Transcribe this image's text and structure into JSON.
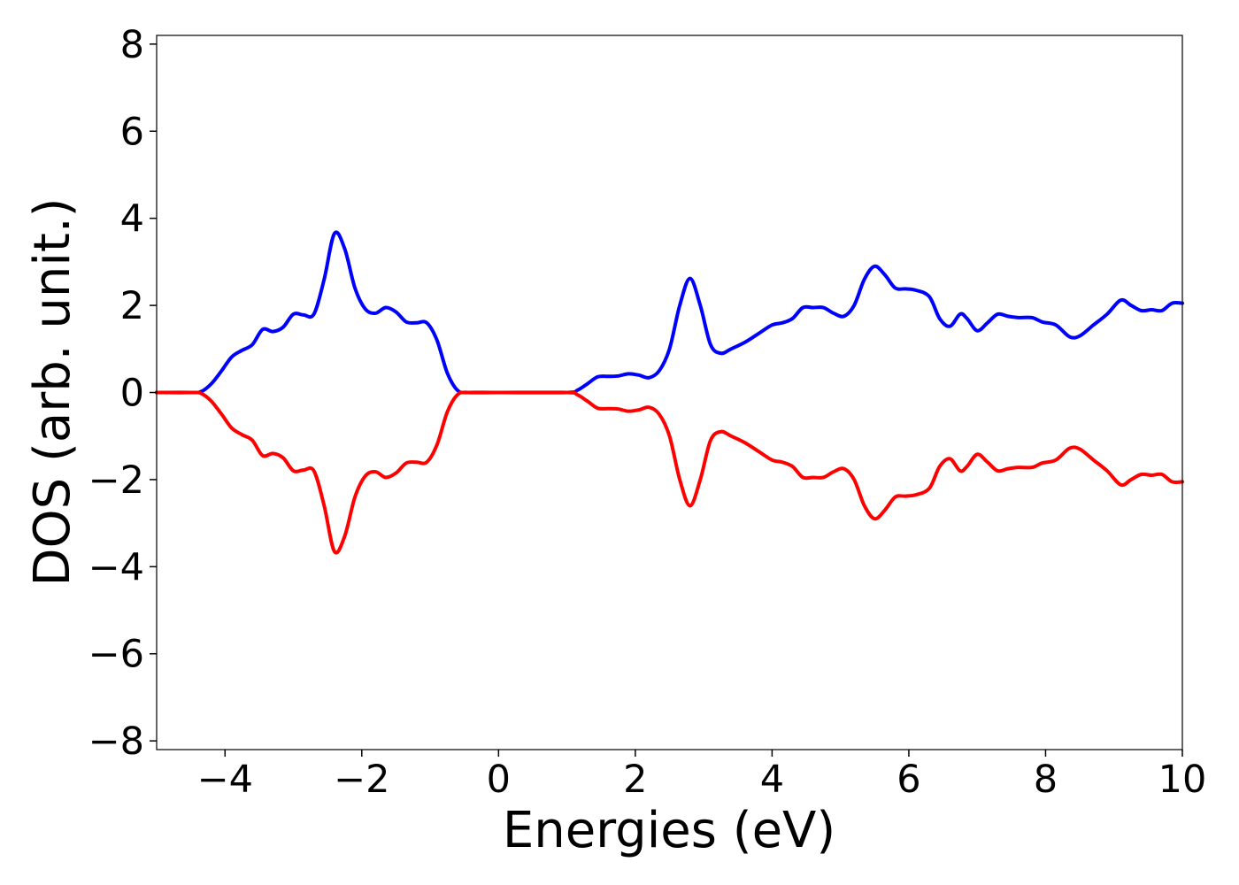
{
  "chart_data": {
    "type": "line",
    "title": "",
    "xlabel": "Energies (eV)",
    "ylabel": "DOS (arb. unit.)",
    "xlim": [
      -5,
      10
    ],
    "ylim": [
      -8.2,
      8.2
    ],
    "x_ticks": [
      -4,
      -2,
      0,
      2,
      4,
      6,
      8,
      10
    ],
    "x_tick_labels": [
      "−4",
      "−2",
      "0",
      "2",
      "4",
      "6",
      "8",
      "10"
    ],
    "y_ticks": [
      8,
      6,
      4,
      2,
      0,
      -2,
      -4,
      -6,
      -8
    ],
    "y_tick_labels": [
      "8",
      "6",
      "4",
      "2",
      "0",
      "−2",
      "−4",
      "−6",
      "−8"
    ],
    "grid": false,
    "legend": "none",
    "series": [
      {
        "color": "#0000ff",
        "points": [
          [
            -5.0,
            0.0
          ],
          [
            -4.5,
            0.0
          ],
          [
            -4.35,
            0.02
          ],
          [
            -4.2,
            0.2
          ],
          [
            -4.05,
            0.5
          ],
          [
            -3.9,
            0.82
          ],
          [
            -3.75,
            0.97
          ],
          [
            -3.6,
            1.1
          ],
          [
            -3.45,
            1.45
          ],
          [
            -3.3,
            1.4
          ],
          [
            -3.15,
            1.5
          ],
          [
            -3.0,
            1.8
          ],
          [
            -2.85,
            1.78
          ],
          [
            -2.7,
            1.8
          ],
          [
            -2.55,
            2.6
          ],
          [
            -2.4,
            3.65
          ],
          [
            -2.25,
            3.3
          ],
          [
            -2.1,
            2.4
          ],
          [
            -1.95,
            1.92
          ],
          [
            -1.8,
            1.82
          ],
          [
            -1.65,
            1.95
          ],
          [
            -1.5,
            1.85
          ],
          [
            -1.35,
            1.62
          ],
          [
            -1.2,
            1.6
          ],
          [
            -1.05,
            1.6
          ],
          [
            -0.9,
            1.2
          ],
          [
            -0.75,
            0.45
          ],
          [
            -0.6,
            0.05
          ],
          [
            -0.45,
            0.0
          ],
          [
            0.0,
            0.0
          ],
          [
            1.0,
            0.0
          ],
          [
            1.15,
            0.05
          ],
          [
            1.3,
            0.2
          ],
          [
            1.45,
            0.36
          ],
          [
            1.6,
            0.37
          ],
          [
            1.75,
            0.38
          ],
          [
            1.9,
            0.43
          ],
          [
            2.05,
            0.4
          ],
          [
            2.2,
            0.34
          ],
          [
            2.35,
            0.5
          ],
          [
            2.5,
            1.0
          ],
          [
            2.65,
            2.0
          ],
          [
            2.8,
            2.62
          ],
          [
            2.95,
            2.0
          ],
          [
            3.1,
            1.1
          ],
          [
            3.25,
            0.9
          ],
          [
            3.4,
            1.0
          ],
          [
            3.6,
            1.15
          ],
          [
            3.8,
            1.35
          ],
          [
            4.0,
            1.55
          ],
          [
            4.15,
            1.6
          ],
          [
            4.3,
            1.7
          ],
          [
            4.45,
            1.95
          ],
          [
            4.6,
            1.95
          ],
          [
            4.75,
            1.95
          ],
          [
            4.9,
            1.82
          ],
          [
            5.05,
            1.75
          ],
          [
            5.2,
            2.0
          ],
          [
            5.35,
            2.6
          ],
          [
            5.5,
            2.9
          ],
          [
            5.65,
            2.7
          ],
          [
            5.8,
            2.4
          ],
          [
            5.95,
            2.38
          ],
          [
            6.1,
            2.35
          ],
          [
            6.3,
            2.2
          ],
          [
            6.45,
            1.7
          ],
          [
            6.6,
            1.52
          ],
          [
            6.75,
            1.8
          ],
          [
            6.85,
            1.7
          ],
          [
            7.0,
            1.42
          ],
          [
            7.15,
            1.6
          ],
          [
            7.3,
            1.8
          ],
          [
            7.45,
            1.75
          ],
          [
            7.6,
            1.72
          ],
          [
            7.8,
            1.72
          ],
          [
            7.95,
            1.62
          ],
          [
            8.15,
            1.55
          ],
          [
            8.35,
            1.28
          ],
          [
            8.5,
            1.3
          ],
          [
            8.7,
            1.55
          ],
          [
            8.9,
            1.8
          ],
          [
            9.1,
            2.12
          ],
          [
            9.25,
            2.0
          ],
          [
            9.4,
            1.88
          ],
          [
            9.55,
            1.9
          ],
          [
            9.7,
            1.88
          ],
          [
            9.85,
            2.05
          ],
          [
            10.0,
            2.05
          ]
        ]
      },
      {
        "color": "#ff0000",
        "points": [
          [
            -5.0,
            0.0
          ],
          [
            -4.5,
            0.0
          ],
          [
            -4.35,
            -0.02
          ],
          [
            -4.2,
            -0.2
          ],
          [
            -4.05,
            -0.5
          ],
          [
            -3.9,
            -0.82
          ],
          [
            -3.75,
            -0.97
          ],
          [
            -3.6,
            -1.1
          ],
          [
            -3.45,
            -1.45
          ],
          [
            -3.3,
            -1.4
          ],
          [
            -3.15,
            -1.5
          ],
          [
            -3.0,
            -1.8
          ],
          [
            -2.85,
            -1.78
          ],
          [
            -2.7,
            -1.8
          ],
          [
            -2.55,
            -2.6
          ],
          [
            -2.4,
            -3.65
          ],
          [
            -2.25,
            -3.3
          ],
          [
            -2.1,
            -2.4
          ],
          [
            -1.95,
            -1.92
          ],
          [
            -1.8,
            -1.82
          ],
          [
            -1.65,
            -1.95
          ],
          [
            -1.5,
            -1.85
          ],
          [
            -1.35,
            -1.62
          ],
          [
            -1.2,
            -1.6
          ],
          [
            -1.05,
            -1.6
          ],
          [
            -0.9,
            -1.2
          ],
          [
            -0.75,
            -0.45
          ],
          [
            -0.6,
            -0.05
          ],
          [
            -0.45,
            0.0
          ],
          [
            0.0,
            0.0
          ],
          [
            1.0,
            0.0
          ],
          [
            1.15,
            -0.05
          ],
          [
            1.3,
            -0.2
          ],
          [
            1.45,
            -0.36
          ],
          [
            1.6,
            -0.37
          ],
          [
            1.75,
            -0.38
          ],
          [
            1.9,
            -0.43
          ],
          [
            2.05,
            -0.4
          ],
          [
            2.2,
            -0.34
          ],
          [
            2.35,
            -0.5
          ],
          [
            2.5,
            -1.0
          ],
          [
            2.65,
            -2.0
          ],
          [
            2.8,
            -2.6
          ],
          [
            2.95,
            -2.0
          ],
          [
            3.1,
            -1.1
          ],
          [
            3.25,
            -0.9
          ],
          [
            3.4,
            -1.0
          ],
          [
            3.6,
            -1.15
          ],
          [
            3.8,
            -1.35
          ],
          [
            4.0,
            -1.55
          ],
          [
            4.15,
            -1.6
          ],
          [
            4.3,
            -1.7
          ],
          [
            4.45,
            -1.95
          ],
          [
            4.6,
            -1.95
          ],
          [
            4.75,
            -1.95
          ],
          [
            4.9,
            -1.82
          ],
          [
            5.05,
            -1.75
          ],
          [
            5.2,
            -2.0
          ],
          [
            5.35,
            -2.6
          ],
          [
            5.5,
            -2.9
          ],
          [
            5.65,
            -2.7
          ],
          [
            5.8,
            -2.4
          ],
          [
            5.95,
            -2.38
          ],
          [
            6.1,
            -2.35
          ],
          [
            6.3,
            -2.2
          ],
          [
            6.45,
            -1.7
          ],
          [
            6.6,
            -1.52
          ],
          [
            6.75,
            -1.8
          ],
          [
            6.85,
            -1.7
          ],
          [
            7.0,
            -1.42
          ],
          [
            7.15,
            -1.6
          ],
          [
            7.3,
            -1.8
          ],
          [
            7.45,
            -1.75
          ],
          [
            7.6,
            -1.72
          ],
          [
            7.8,
            -1.72
          ],
          [
            7.95,
            -1.62
          ],
          [
            8.15,
            -1.55
          ],
          [
            8.35,
            -1.28
          ],
          [
            8.5,
            -1.3
          ],
          [
            8.7,
            -1.55
          ],
          [
            8.9,
            -1.8
          ],
          [
            9.1,
            -2.12
          ],
          [
            9.25,
            -2.0
          ],
          [
            9.4,
            -1.88
          ],
          [
            9.55,
            -1.9
          ],
          [
            9.7,
            -1.88
          ],
          [
            9.85,
            -2.05
          ],
          [
            10.0,
            -2.05
          ]
        ]
      }
    ]
  }
}
